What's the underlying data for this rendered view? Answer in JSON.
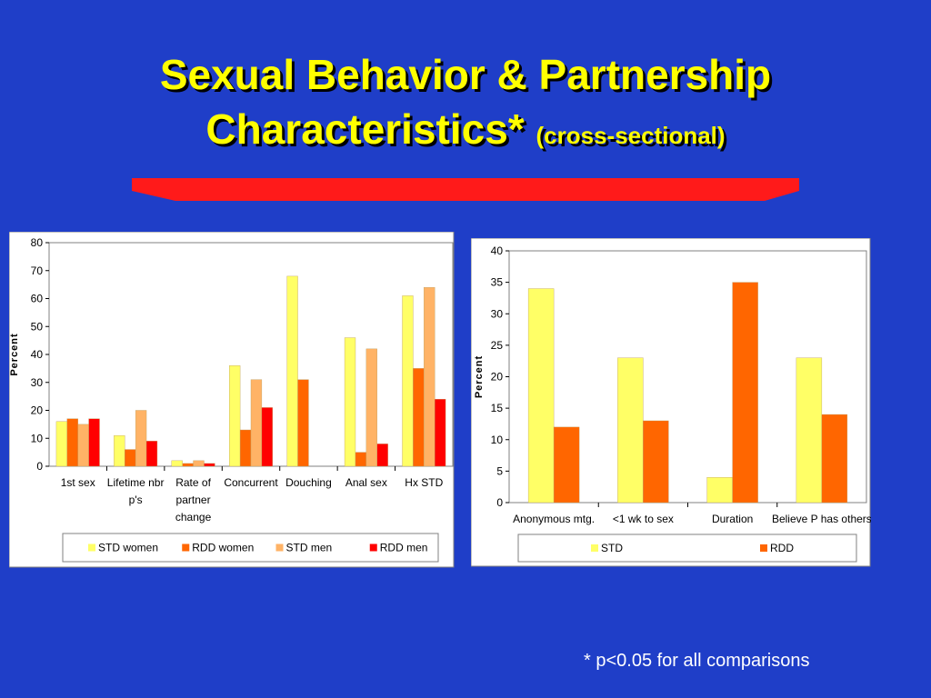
{
  "slide": {
    "title_line1": "Sexual Behavior & Partnership",
    "title_line2": "Characteristics*",
    "title_suffix": "(cross-sectional)",
    "footnote": "* p<0.05 for all comparisons"
  },
  "colors": {
    "background": "#1f3ec8",
    "title": "#ffff00",
    "rule": "#ff1a1a",
    "STD women": "#ffff66",
    "RDD women": "#ff6600",
    "STD men": "#ffb366",
    "RDD men": "#ff0000",
    "STD": "#ffff66",
    "RDD": "#ff6600"
  },
  "chart_data": [
    {
      "type": "bar",
      "title": "",
      "xlabel": "",
      "ylabel": "Percent",
      "ylim": [
        0,
        80
      ],
      "yticks": [
        0,
        10,
        20,
        30,
        40,
        50,
        60,
        70,
        80
      ],
      "grid": false,
      "legend": "bottom",
      "categories": [
        "1st sex",
        "Lifetime nbr p's",
        "Rate of partner change",
        "Concurrent",
        "Douching",
        "Anal sex",
        "Hx STD"
      ],
      "series": [
        {
          "name": "STD women",
          "values": [
            16,
            11,
            2,
            36,
            68,
            46,
            61
          ]
        },
        {
          "name": "RDD women",
          "values": [
            17,
            6,
            1,
            13,
            31,
            5,
            35
          ]
        },
        {
          "name": "STD men",
          "values": [
            15,
            20,
            2,
            31,
            0,
            42,
            64
          ]
        },
        {
          "name": "RDD men",
          "values": [
            17,
            9,
            1,
            21,
            0,
            8,
            24
          ]
        }
      ]
    },
    {
      "type": "bar",
      "title": "",
      "xlabel": "",
      "ylabel": "Percent",
      "ylim": [
        0,
        40
      ],
      "yticks": [
        0,
        5,
        10,
        15,
        20,
        25,
        30,
        35,
        40
      ],
      "grid": false,
      "legend": "bottom",
      "categories": [
        "Anonymous mtg.",
        "<1 wk to sex",
        "Duration",
        "Believe P has others"
      ],
      "series": [
        {
          "name": "STD",
          "values": [
            34,
            23,
            4,
            23
          ]
        },
        {
          "name": "RDD",
          "values": [
            12,
            13,
            35,
            14
          ]
        }
      ]
    }
  ]
}
